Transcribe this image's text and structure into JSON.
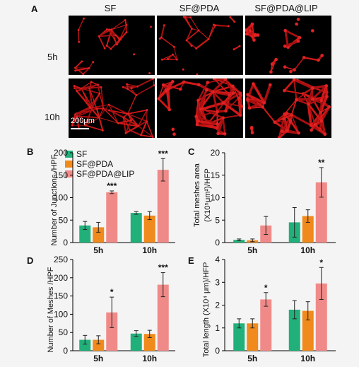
{
  "panel_a": {
    "letter": "A",
    "columns": [
      "SF",
      "SF@PDA",
      "SF@PDA@LIP"
    ],
    "rows": [
      "5h",
      "10h"
    ],
    "scale_label": "200μm"
  },
  "legend": [
    {
      "name": "SF",
      "color": "#22b07a"
    },
    {
      "name": "SF@PDA",
      "color": "#f08a1c"
    },
    {
      "name": "SF@PDA@LIP",
      "color": "#f08a88"
    }
  ],
  "chart_data": [
    {
      "id": "B",
      "letter": "B",
      "type": "bar",
      "categories": [
        "5h",
        "10h"
      ],
      "series": [
        {
          "name": "SF",
          "values": [
            38,
            66
          ],
          "errors": [
            9,
            3
          ]
        },
        {
          "name": "SF@PDA",
          "values": [
            34,
            60
          ],
          "errors": [
            11,
            9
          ]
        },
        {
          "name": "SF@PDA@LIP",
          "values": [
            112,
            162
          ],
          "errors": [
            3,
            25
          ]
        }
      ],
      "significance": [
        "***",
        "***"
      ],
      "ylabel": "Number of Junctions /HPF",
      "ylim": [
        0,
        200
      ],
      "yticks": [
        0,
        50,
        100,
        150,
        200
      ]
    },
    {
      "id": "C",
      "letter": "C",
      "type": "bar",
      "categories": [
        "5h",
        "10h"
      ],
      "series": [
        {
          "name": "SF",
          "values": [
            0.6,
            4.5
          ],
          "errors": [
            0.2,
            3.3
          ]
        },
        {
          "name": "SF@PDA",
          "values": [
            0.5,
            5.9
          ],
          "errors": [
            0.3,
            1.4
          ]
        },
        {
          "name": "SF@PDA@LIP",
          "values": [
            3.8,
            13.4
          ],
          "errors": [
            2.0,
            3.3
          ]
        }
      ],
      "significance": [
        "",
        "**"
      ],
      "ylabel": "Total meshes area",
      "ylabel2": "(X10⁵μm²)/HFP",
      "ylim": [
        0,
        20
      ],
      "yticks": [
        0,
        5,
        10,
        15,
        20
      ]
    },
    {
      "id": "D",
      "letter": "D",
      "type": "bar",
      "categories": [
        "5h",
        "10h"
      ],
      "series": [
        {
          "name": "SF",
          "values": [
            30,
            47
          ],
          "errors": [
            12,
            8
          ]
        },
        {
          "name": "SF@PDA",
          "values": [
            30,
            46
          ],
          "errors": [
            11,
            10
          ]
        },
        {
          "name": "SF@PDA@LIP",
          "values": [
            105,
            181
          ],
          "errors": [
            42,
            33
          ]
        }
      ],
      "significance": [
        "*",
        "***"
      ],
      "ylabel": "Number of Meshes /HPF",
      "ylim": [
        0,
        250
      ],
      "yticks": [
        0,
        50,
        100,
        150,
        200,
        250
      ]
    },
    {
      "id": "E",
      "letter": "E",
      "type": "bar",
      "categories": [
        "5h",
        "10h"
      ],
      "series": [
        {
          "name": "SF",
          "values": [
            1.2,
            1.8
          ],
          "errors": [
            0.2,
            0.4
          ]
        },
        {
          "name": "SF@PDA",
          "values": [
            1.2,
            1.75
          ],
          "errors": [
            0.2,
            0.4
          ]
        },
        {
          "name": "SF@PDA@LIP",
          "values": [
            2.25,
            2.95
          ],
          "errors": [
            0.3,
            0.7
          ]
        }
      ],
      "significance": [
        "*",
        "*"
      ],
      "ylabel": "Total length  (X10⁴ μm)/HFP",
      "ylim": [
        0,
        4
      ],
      "yticks": [
        0,
        1,
        2,
        3,
        4
      ]
    }
  ]
}
